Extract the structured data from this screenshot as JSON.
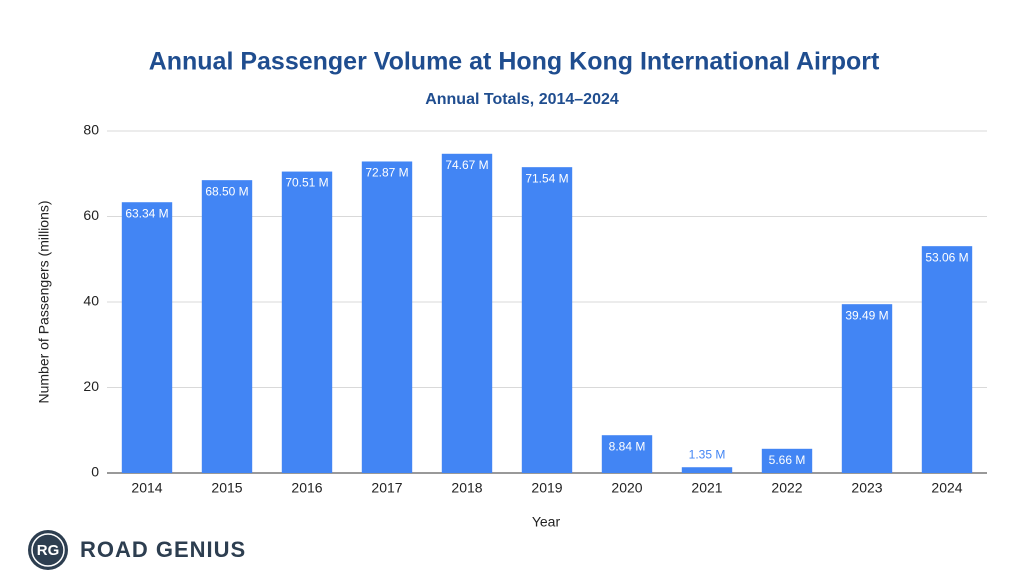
{
  "chart_data": {
    "type": "bar",
    "title": "Annual Passenger Volume at Hong Kong International Airport",
    "subtitle": "Annual Totals, 2014–2024",
    "x_label": "Year",
    "y_label": "Number of Passengers (millions)",
    "categories": [
      "2014",
      "2015",
      "2016",
      "2017",
      "2018",
      "2019",
      "2020",
      "2021",
      "2022",
      "2023",
      "2024"
    ],
    "values": [
      63.34,
      68.5,
      70.51,
      72.87,
      74.67,
      71.54,
      8.84,
      1.35,
      5.66,
      39.49,
      53.06
    ],
    "value_labels": [
      "63.34 M",
      "68.50 M",
      "70.51 M",
      "72.87 M",
      "74.67 M",
      "71.54 M",
      "8.84 M",
      "1.35 M",
      "5.66 M",
      "39.49 M",
      "53.06 M"
    ],
    "color": "#4285f4",
    "ylim": [
      0,
      80
    ],
    "yticks": [
      0,
      20,
      40,
      60,
      80
    ],
    "grid": true
  },
  "branding": {
    "badge": "RG",
    "name": "ROAD GENIUS"
  }
}
